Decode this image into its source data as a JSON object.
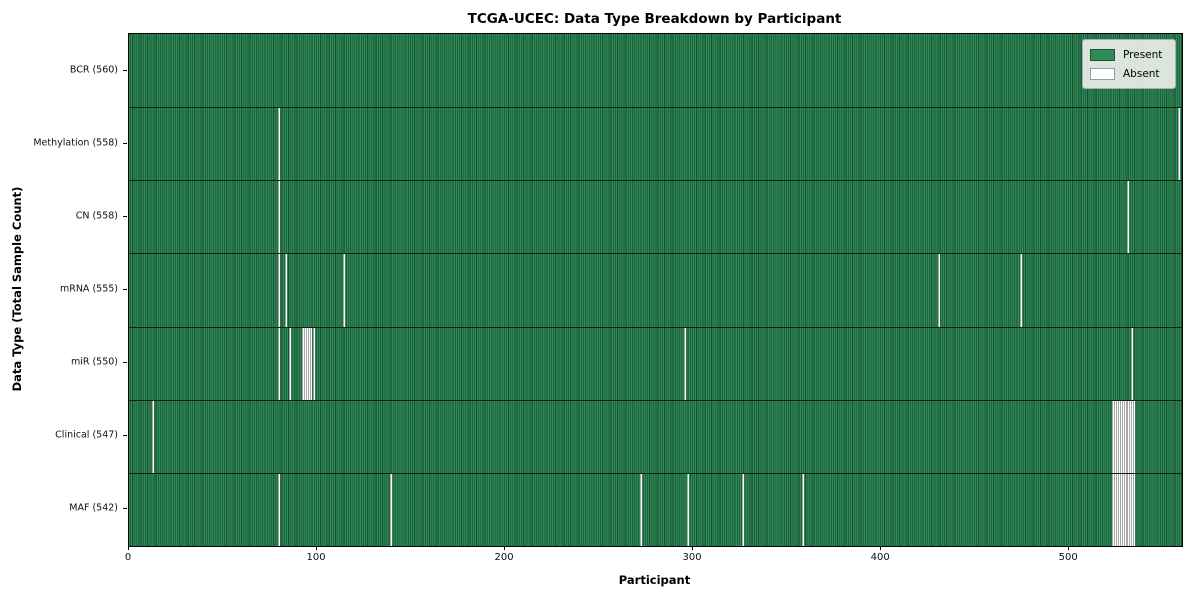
{
  "title": "TCGA-UCEC: Data Type Breakdown by Participant",
  "colors": {
    "present": "#2e8b57",
    "present_dark": "#175130",
    "absent": "#ffffff",
    "legend_present_border": "#1c5735",
    "legend_absent_border": "#9a9a9a"
  },
  "chart_data": {
    "type": "heatmap",
    "title": "TCGA-UCEC: Data Type Breakdown by Participant",
    "xlabel": "Participant",
    "ylabel": "Data Type (Total Sample Count)",
    "xlim": [
      0,
      560
    ],
    "n_participants": 560,
    "x_ticks": [
      0,
      100,
      200,
      300,
      400,
      500
    ],
    "grid": false,
    "legend_position": "upper right",
    "legend": [
      {
        "label": "Present",
        "color": "#2e8b57"
      },
      {
        "label": "Absent",
        "color": "#ffffff"
      }
    ],
    "rows": [
      {
        "label": "BCR (560)",
        "data_type": "BCR",
        "present_count": 560,
        "absent_count": 0,
        "absent_participants": []
      },
      {
        "label": "Methylation (558)",
        "data_type": "Methylation",
        "present_count": 558,
        "absent_count": 2,
        "absent_participants": [
          79,
          558
        ]
      },
      {
        "label": "CN (558)",
        "data_type": "CN",
        "present_count": 558,
        "absent_count": 2,
        "absent_participants": [
          79,
          531
        ]
      },
      {
        "label": "mRNA (555)",
        "data_type": "mRNA",
        "present_count": 555,
        "absent_count": 5,
        "absent_participants": [
          79,
          83,
          114,
          430,
          474
        ]
      },
      {
        "label": "miR (550)",
        "data_type": "miR",
        "present_count": 550,
        "absent_count": 10,
        "absent_participants": [
          79,
          85,
          92,
          93,
          94,
          95,
          96,
          98,
          295,
          533
        ]
      },
      {
        "label": "Clinical (547)",
        "data_type": "Clinical",
        "present_count": 547,
        "absent_count": 13,
        "absent_participants": [
          12,
          523,
          524,
          525,
          526,
          527,
          528,
          529,
          530,
          531,
          532,
          533,
          534
        ]
      },
      {
        "label": "MAF (542)",
        "data_type": "MAF",
        "present_count": 542,
        "absent_count": 18,
        "absent_participants": [
          79,
          139,
          272,
          297,
          326,
          358,
          523,
          524,
          525,
          526,
          527,
          528,
          529,
          530,
          531,
          532,
          533,
          534
        ]
      }
    ]
  }
}
